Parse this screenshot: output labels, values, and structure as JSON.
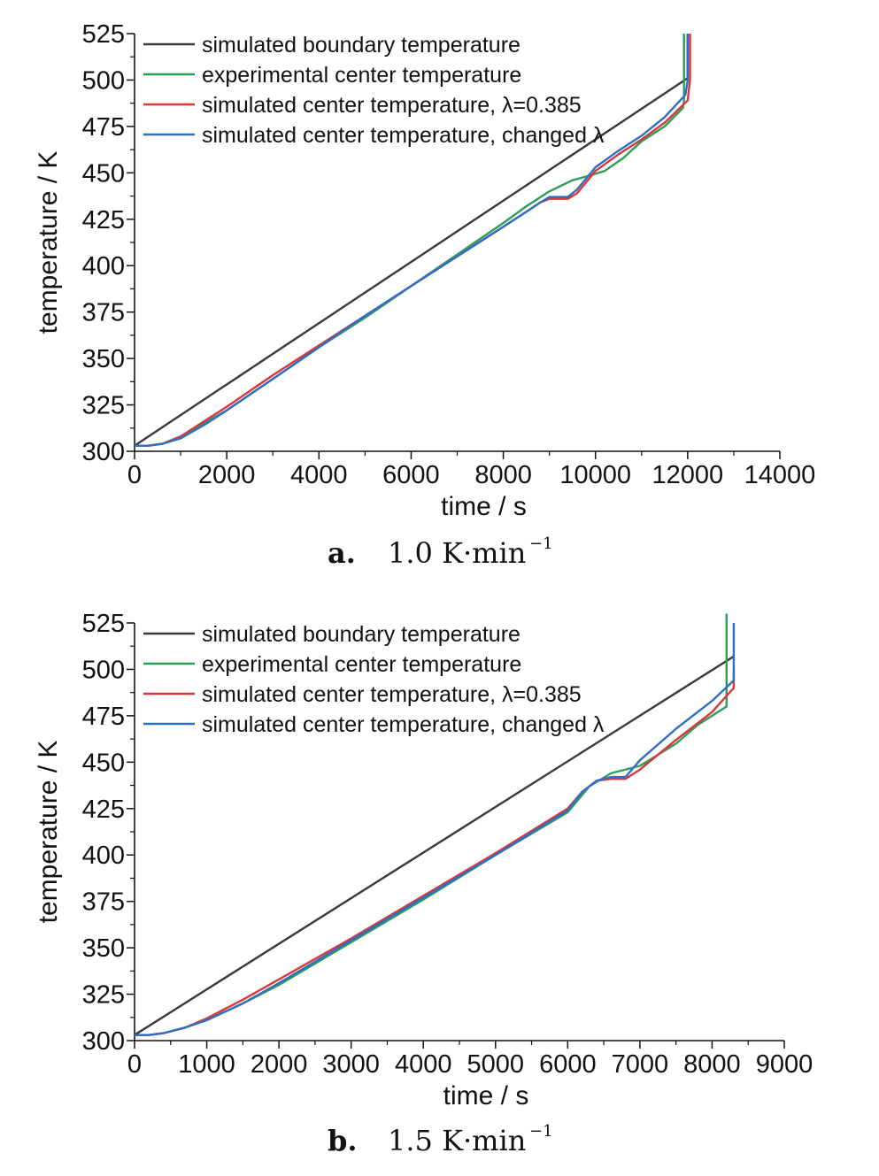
{
  "chart_data": [
    {
      "type": "line",
      "panel_letter": "a.",
      "caption_rate": "1.0 K·min",
      "caption_exponent": "−1",
      "xlabel": "time / s",
      "ylabel": "temperature / K",
      "xlim": [
        0,
        14000
      ],
      "ylim": [
        300,
        525
      ],
      "xticks": [
        0,
        2000,
        4000,
        6000,
        8000,
        10000,
        12000,
        14000
      ],
      "yticks": [
        300,
        325,
        350,
        375,
        400,
        425,
        450,
        475,
        500,
        525
      ],
      "legend_position": "top-left",
      "series": [
        {
          "name": "simulated boundary temperature",
          "color": "#3a3a3a",
          "x": [
            0,
            12000,
            12000
          ],
          "y": [
            303,
            501,
            525
          ]
        },
        {
          "name": "experimental center temperature",
          "color": "#2e9e55",
          "x": [
            0,
            300,
            600,
            1000,
            1500,
            2000,
            3000,
            4000,
            5000,
            6000,
            7000,
            8000,
            8500,
            9000,
            9500,
            9800,
            10200,
            10600,
            11000,
            11500,
            11900,
            11920,
            11920
          ],
          "y": [
            303,
            303,
            304,
            308,
            315,
            322,
            339,
            356,
            372,
            389,
            406,
            423,
            432,
            440,
            446,
            448,
            451,
            458,
            467,
            475,
            485,
            489,
            525
          ]
        },
        {
          "name": "simulated center temperature, λ=0.385",
          "color": "#d9383a",
          "x": [
            0,
            300,
            600,
            1000,
            1500,
            2000,
            3000,
            4000,
            5000,
            6000,
            7000,
            8000,
            8500,
            8800,
            9000,
            9200,
            9400,
            9600,
            9800,
            10000,
            10500,
            11000,
            11500,
            12000,
            12050,
            12050
          ],
          "y": [
            303,
            303,
            304,
            308,
            316,
            324,
            341,
            357,
            373,
            389,
            405,
            421,
            429,
            434,
            436,
            436,
            436,
            439,
            445,
            451,
            460,
            468,
            477,
            489,
            500,
            525
          ]
        },
        {
          "name": "simulated center temperature, changed λ",
          "color": "#2f6ec5",
          "x": [
            0,
            300,
            600,
            1000,
            1500,
            2000,
            3000,
            4000,
            5000,
            6000,
            7000,
            8000,
            8500,
            8800,
            9000,
            9200,
            9400,
            9600,
            9800,
            10000,
            10500,
            11000,
            11500,
            11950,
            12000,
            12000
          ],
          "y": [
            303,
            303,
            304,
            307,
            314,
            322,
            339,
            356,
            373,
            389,
            405,
            421,
            429,
            434,
            437,
            437,
            437,
            441,
            447,
            453,
            462,
            470,
            480,
            492,
            500,
            525
          ]
        }
      ]
    },
    {
      "type": "line",
      "panel_letter": "b.",
      "caption_rate": "1.5 K·min",
      "caption_exponent": "−1",
      "xlabel": "time / s",
      "ylabel": "temperature / K",
      "xlim": [
        0,
        9000
      ],
      "ylim": [
        300,
        525
      ],
      "xticks": [
        0,
        1000,
        2000,
        3000,
        4000,
        5000,
        6000,
        7000,
        8000,
        9000
      ],
      "yticks": [
        300,
        325,
        350,
        375,
        400,
        425,
        450,
        475,
        500,
        525
      ],
      "legend_position": "top-left",
      "series": [
        {
          "name": "simulated boundary temperature",
          "color": "#3a3a3a",
          "x": [
            0,
            8300
          ],
          "y": [
            303,
            507
          ]
        },
        {
          "name": "experimental center temperature",
          "color": "#2e9e55",
          "x": [
            0,
            200,
            400,
            700,
            1000,
            1500,
            2000,
            3000,
            4000,
            5000,
            6000,
            6300,
            6600,
            7000,
            7500,
            7800,
            8200,
            8200
          ],
          "y": [
            303,
            303,
            304,
            307,
            311,
            320,
            330,
            353,
            376,
            400,
            423,
            437,
            444,
            448,
            460,
            470,
            480,
            530
          ]
        },
        {
          "name": "simulated center temperature, λ=0.385",
          "color": "#d9383a",
          "x": [
            0,
            200,
            400,
            700,
            1000,
            1500,
            2000,
            3000,
            4000,
            5000,
            6000,
            6200,
            6400,
            6600,
            6800,
            7000,
            7500,
            8000,
            8300,
            8300
          ],
          "y": [
            303,
            303,
            304,
            307,
            312,
            322,
            333,
            355,
            378,
            401,
            425,
            434,
            440,
            441,
            441,
            446,
            462,
            477,
            490,
            500
          ]
        },
        {
          "name": "simulated center temperature, changed λ",
          "color": "#2f6ec5",
          "x": [
            0,
            200,
            400,
            700,
            1000,
            1500,
            2000,
            3000,
            4000,
            5000,
            6000,
            6200,
            6400,
            6600,
            6800,
            7000,
            7500,
            8000,
            8300,
            8300
          ],
          "y": [
            303,
            303,
            304,
            307,
            311,
            320,
            331,
            354,
            377,
            400,
            424,
            434,
            440,
            442,
            442,
            451,
            468,
            483,
            494,
            525
          ]
        }
      ]
    }
  ]
}
